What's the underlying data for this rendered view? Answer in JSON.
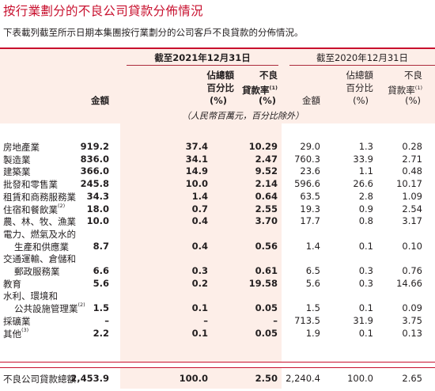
{
  "title": "按行業劃分的不良公司貸款分佈情況",
  "intro": "下表載列截至所示日期本集團按行業劃分的公司客戶不良貸款的分佈情況。",
  "headers": {
    "period_2021": "截至2021年12月31日",
    "period_2020": "截至2020年12月31日",
    "amount": "金額",
    "share_line1": "佔總額",
    "share_line2": "百分比",
    "pct_unit": "(%)",
    "npl_line1": "不良",
    "npl_line2": "貸款率",
    "npl_note": "(1)",
    "unit_note": "（人民幣百萬元，百分比除外）"
  },
  "rows": [
    {
      "label": "房地產業",
      "note": "",
      "v2021": [
        "919.2",
        "37.4",
        "10.29"
      ],
      "v2020": [
        "29.0",
        "1.3",
        "0.28"
      ]
    },
    {
      "label": "製造業",
      "note": "",
      "v2021": [
        "836.0",
        "34.1",
        "2.47"
      ],
      "v2020": [
        "760.3",
        "33.9",
        "2.71"
      ]
    },
    {
      "label": "建築業",
      "note": "",
      "v2021": [
        "366.0",
        "14.9",
        "9.52"
      ],
      "v2020": [
        "23.6",
        "1.1",
        "0.48"
      ]
    },
    {
      "label": "批發和零售業",
      "note": "",
      "v2021": [
        "245.8",
        "10.0",
        "2.14"
      ],
      "v2020": [
        "596.6",
        "26.6",
        "10.17"
      ]
    },
    {
      "label": "租賃和商務服務業",
      "note": "",
      "v2021": [
        "34.3",
        "1.4",
        "0.64"
      ],
      "v2020": [
        "63.5",
        "2.8",
        "1.09"
      ]
    },
    {
      "label": "住宿和餐飲業",
      "note": "(2)",
      "v2021": [
        "18.0",
        "0.7",
        "2.55"
      ],
      "v2020": [
        "19.3",
        "0.9",
        "2.54"
      ]
    },
    {
      "label": "農、林、牧、漁業",
      "note": "",
      "v2021": [
        "10.0",
        "0.4",
        "3.70"
      ],
      "v2020": [
        "17.7",
        "0.8",
        "3.17"
      ]
    },
    {
      "label": "電力、燃氣及水的",
      "label2": "生產和供應業",
      "note": "",
      "v2021": [
        "8.7",
        "0.4",
        "0.56"
      ],
      "v2020": [
        "1.4",
        "0.1",
        "0.10"
      ]
    },
    {
      "label": "交通運輸、倉儲和",
      "label2": "郵政服務業",
      "note": "",
      "v2021": [
        "6.6",
        "0.3",
        "0.61"
      ],
      "v2020": [
        "6.5",
        "0.3",
        "0.76"
      ]
    },
    {
      "label": "教育",
      "note": "",
      "v2021": [
        "5.6",
        "0.2",
        "19.58"
      ],
      "v2020": [
        "5.6",
        "0.3",
        "14.66"
      ]
    },
    {
      "label": "水利、環境和",
      "label2": "公共設施管理業",
      "note": "(2)",
      "v2021": [
        "1.5",
        "0.1",
        "0.05"
      ],
      "v2020": [
        "1.5",
        "0.1",
        "0.09"
      ]
    },
    {
      "label": "採礦業",
      "note": "",
      "v2021": [
        "–",
        "–",
        "–"
      ],
      "v2020": [
        "713.5",
        "31.9",
        "3.75"
      ]
    },
    {
      "label": "其他",
      "note": "(3)",
      "v2021": [
        "2.2",
        "0.1",
        "0.05"
      ],
      "v2020": [
        "1.9",
        "0.1",
        "0.13"
      ]
    }
  ],
  "total": {
    "label": "不良公司貸款總額",
    "v2021": [
      "2,453.9",
      "100.0",
      "2.50"
    ],
    "v2020": [
      "2,240.4",
      "100.0",
      "2.65"
    ]
  }
}
